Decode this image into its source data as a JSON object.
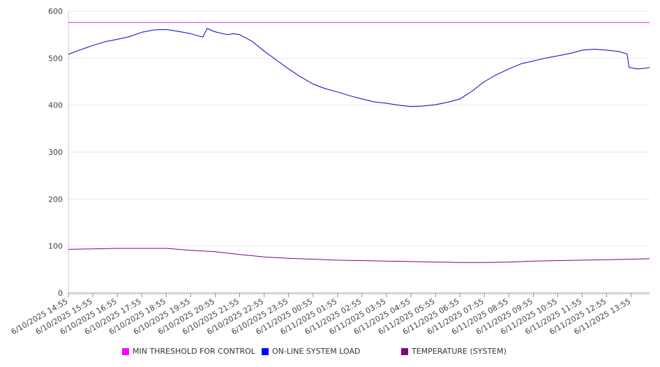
{
  "chart_data": {
    "type": "line",
    "title": "",
    "xlabel": "",
    "ylabel": "",
    "ylim": [
      0,
      600
    ],
    "yticks": [
      0,
      100,
      200,
      300,
      400,
      500,
      600
    ],
    "grid": true,
    "legend_position": "bottom",
    "x_ticks": [
      "6/10/2025 14:55",
      "6/10/2025 15:55",
      "6/10/2025 16:55",
      "6/10/2025 17:55",
      "6/10/2025 18:55",
      "6/10/2025 19:55",
      "6/10/2025 20:55",
      "6/10/2025 21:55",
      "6/10/2025 22:55",
      "6/10/2025 23:55",
      "6/11/2025 00:55",
      "6/11/2025 01:55",
      "6/11/2025 02:55",
      "6/11/2025 03:55",
      "6/11/2025 04:55",
      "6/11/2025 05:55",
      "6/11/2025 06:55",
      "6/11/2025 07:55",
      "6/11/2025 08:55",
      "6/11/2025 09:55",
      "6/11/2025 10:55",
      "6/11/2025 11:55",
      "6/11/2025 12:55",
      "6/11/2025 13:55"
    ],
    "x_end": "6/11/2025 14:40",
    "series": [
      {
        "name": "MIN THRESHOLD FOR CONTROL",
        "color": "#cc33cc",
        "points": [
          [
            "6/10/2025 14:55",
            576
          ],
          [
            "6/11/2025 14:40",
            576
          ]
        ]
      },
      {
        "name": "ON-LINE SYSTEM LOAD",
        "color": "#0000cc",
        "points": [
          [
            "6/10/2025 14:55",
            508
          ],
          [
            "6/10/2025 15:25",
            518
          ],
          [
            "6/10/2025 15:55",
            527
          ],
          [
            "6/10/2025 16:25",
            535
          ],
          [
            "6/10/2025 16:55",
            540
          ],
          [
            "6/10/2025 17:25",
            546
          ],
          [
            "6/10/2025 17:55",
            555
          ],
          [
            "6/10/2025 18:25",
            560
          ],
          [
            "6/10/2025 18:55",
            561
          ],
          [
            "6/10/2025 19:25",
            557
          ],
          [
            "6/10/2025 19:55",
            552
          ],
          [
            "6/10/2025 20:15",
            547
          ],
          [
            "6/10/2025 20:25",
            545
          ],
          [
            "6/10/2025 20:35",
            563
          ],
          [
            "6/10/2025 20:55",
            556
          ],
          [
            "6/10/2025 21:25",
            550
          ],
          [
            "6/10/2025 21:40",
            552
          ],
          [
            "6/10/2025 21:55",
            550
          ],
          [
            "6/10/2025 22:25",
            536
          ],
          [
            "6/10/2025 22:55",
            515
          ],
          [
            "6/10/2025 23:25",
            496
          ],
          [
            "6/10/2025 23:55",
            477
          ],
          [
            "6/11/2025 00:25",
            460
          ],
          [
            "6/11/2025 00:55",
            445
          ],
          [
            "6/11/2025 01:25",
            435
          ],
          [
            "6/11/2025 01:55",
            428
          ],
          [
            "6/11/2025 02:25",
            420
          ],
          [
            "6/11/2025 02:55",
            413
          ],
          [
            "6/11/2025 03:25",
            407
          ],
          [
            "6/11/2025 03:55",
            404
          ],
          [
            "6/11/2025 04:25",
            400
          ],
          [
            "6/11/2025 04:55",
            397
          ],
          [
            "6/11/2025 05:25",
            398
          ],
          [
            "6/11/2025 05:55",
            401
          ],
          [
            "6/11/2025 06:25",
            406
          ],
          [
            "6/11/2025 06:55",
            413
          ],
          [
            "6/11/2025 07:25",
            430
          ],
          [
            "6/11/2025 07:55",
            450
          ],
          [
            "6/11/2025 08:25",
            465
          ],
          [
            "6/11/2025 08:55",
            477
          ],
          [
            "6/11/2025 09:25",
            488
          ],
          [
            "6/11/2025 09:55",
            494
          ],
          [
            "6/11/2025 10:25",
            500
          ],
          [
            "6/11/2025 10:55",
            505
          ],
          [
            "6/11/2025 11:25",
            510
          ],
          [
            "6/11/2025 11:55",
            517
          ],
          [
            "6/11/2025 12:25",
            519
          ],
          [
            "6/11/2025 12:55",
            517
          ],
          [
            "6/11/2025 13:25",
            514
          ],
          [
            "6/11/2025 13:45",
            509
          ],
          [
            "6/11/2025 13:50",
            480
          ],
          [
            "6/11/2025 14:10",
            477
          ],
          [
            "6/11/2025 14:25",
            478
          ],
          [
            "6/11/2025 14:40",
            480
          ]
        ]
      },
      {
        "name": "TEMPERATURE (SYSTEM)",
        "color": "#800080",
        "points": [
          [
            "6/10/2025 14:55",
            93
          ],
          [
            "6/10/2025 15:55",
            94
          ],
          [
            "6/10/2025 16:55",
            95
          ],
          [
            "6/10/2025 17:55",
            95
          ],
          [
            "6/10/2025 18:55",
            95
          ],
          [
            "6/10/2025 19:55",
            91
          ],
          [
            "6/10/2025 20:55",
            88
          ],
          [
            "6/10/2025 21:55",
            82
          ],
          [
            "6/10/2025 22:55",
            77
          ],
          [
            "6/10/2025 23:55",
            74
          ],
          [
            "6/11/2025 00:55",
            72
          ],
          [
            "6/11/2025 01:55",
            70
          ],
          [
            "6/11/2025 02:55",
            69
          ],
          [
            "6/11/2025 03:55",
            68
          ],
          [
            "6/11/2025 04:55",
            67
          ],
          [
            "6/11/2025 05:55",
            66
          ],
          [
            "6/11/2025 06:55",
            65
          ],
          [
            "6/11/2025 07:55",
            65
          ],
          [
            "6/11/2025 08:55",
            66
          ],
          [
            "6/11/2025 09:55",
            68
          ],
          [
            "6/11/2025 10:55",
            69
          ],
          [
            "6/11/2025 11:55",
            70
          ],
          [
            "6/11/2025 12:55",
            71
          ],
          [
            "6/11/2025 13:55",
            72
          ],
          [
            "6/11/2025 14:40",
            73
          ]
        ]
      }
    ]
  }
}
